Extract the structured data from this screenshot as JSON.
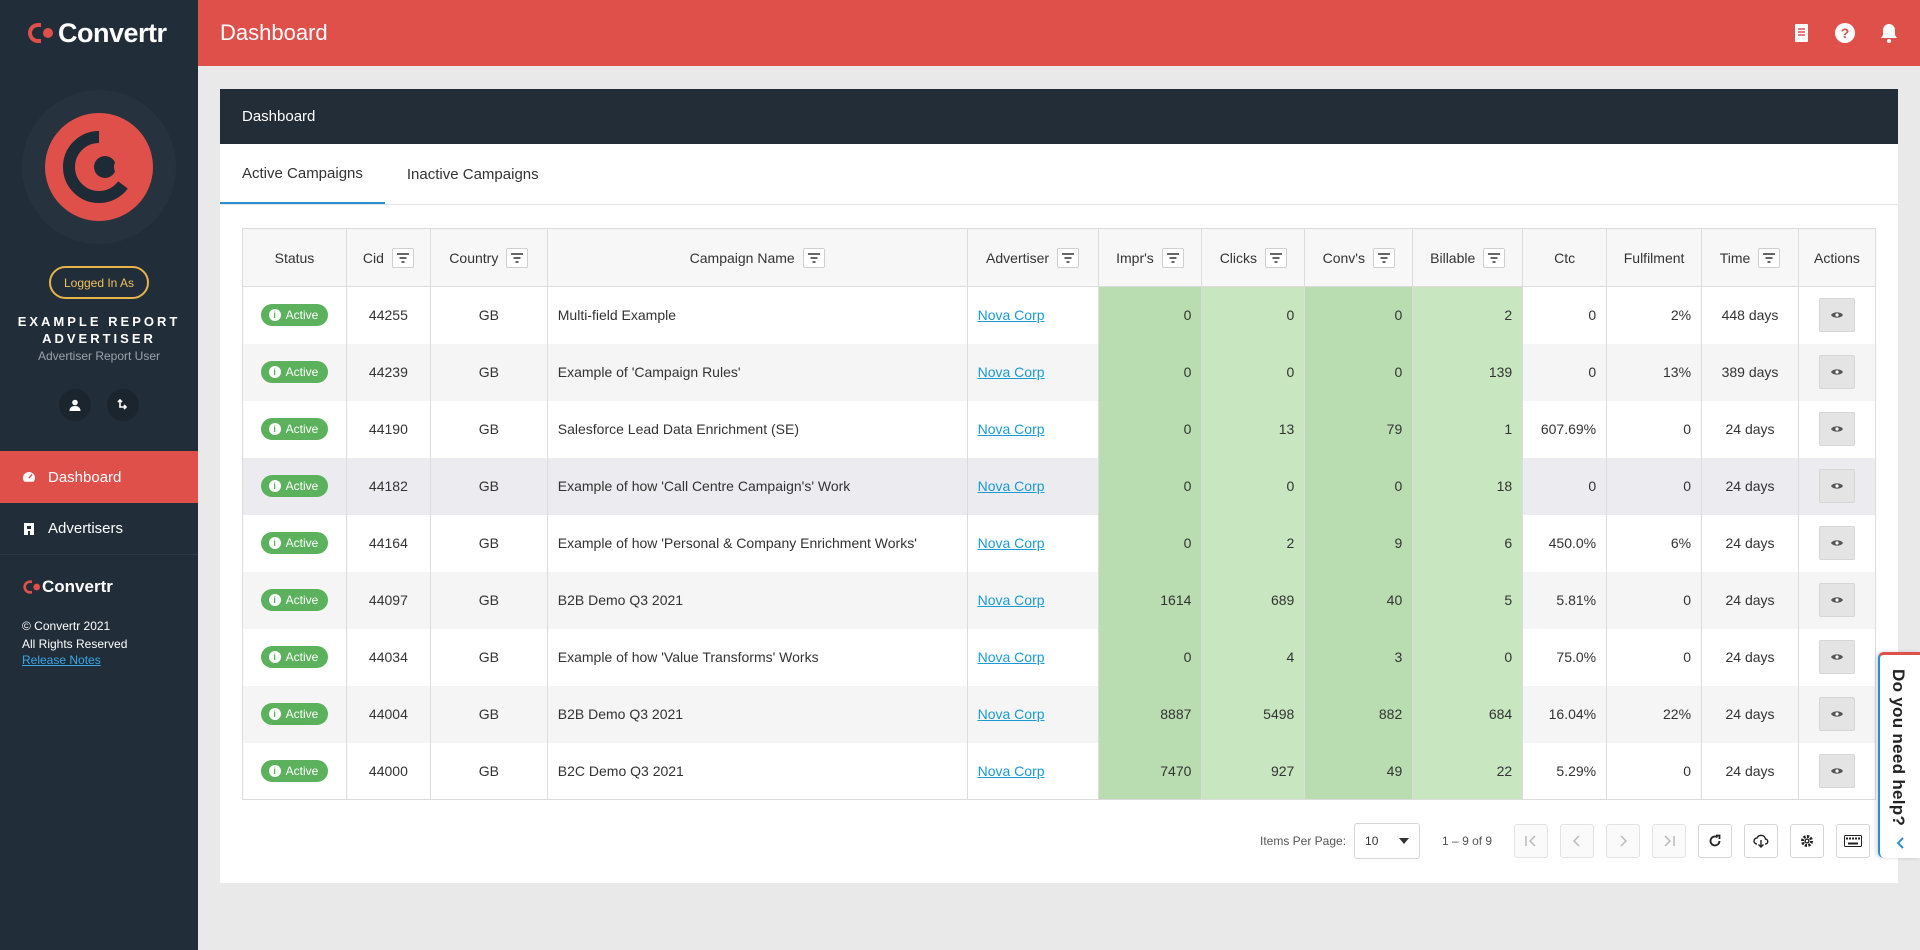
{
  "brand": {
    "name": "Convertr",
    "accent": "#e0504a"
  },
  "sidebar": {
    "logged_in_label": "Logged In As",
    "user_name_line1": "EXAMPLE REPORT",
    "user_name_line2": "ADVERTISER",
    "user_role": "Advertiser Report User",
    "nav": [
      {
        "label": "Dashboard",
        "icon": "dashboard-icon",
        "active": true
      },
      {
        "label": "Advertisers",
        "icon": "advertisers-icon",
        "active": false
      }
    ],
    "footer_logo": "Convertr",
    "copyright": "© Convertr 2021",
    "rights": "All Rights Reserved",
    "release_notes": "Release Notes"
  },
  "topbar": {
    "title": "Dashboard"
  },
  "panel": {
    "title": "Dashboard",
    "tabs": [
      {
        "label": "Active Campaigns"
      },
      {
        "label": "Inactive Campaigns"
      }
    ]
  },
  "table": {
    "headers": {
      "status": "Status",
      "cid": "Cid",
      "country": "Country",
      "campaign": "Campaign Name",
      "advertiser": "Advertiser",
      "imprs": "Impr's",
      "clicks": "Clicks",
      "convs": "Conv's",
      "billable": "Billable",
      "ctc": "Ctc",
      "fulfilment": "Fulfilment",
      "time": "Time",
      "actions": "Actions"
    },
    "rows": [
      {
        "status": "Active",
        "cid": "44255",
        "country": "GB",
        "campaign": "Multi-field Example",
        "advertiser": "Nova Corp",
        "imprs": "0",
        "clicks": "0",
        "convs": "0",
        "billable": "2",
        "ctc": "0",
        "fulfilment": "2%",
        "time": "448 days"
      },
      {
        "status": "Active",
        "cid": "44239",
        "country": "GB",
        "campaign": "Example of 'Campaign Rules'",
        "advertiser": "Nova Corp",
        "imprs": "0",
        "clicks": "0",
        "convs": "0",
        "billable": "139",
        "ctc": "0",
        "fulfilment": "13%",
        "time": "389 days"
      },
      {
        "status": "Active",
        "cid": "44190",
        "country": "GB",
        "campaign": "Salesforce Lead Data Enrichment (SE)",
        "advertiser": "Nova Corp",
        "imprs": "0",
        "clicks": "13",
        "convs": "79",
        "billable": "1",
        "ctc": "607.69%",
        "fulfilment": "0",
        "time": "24 days"
      },
      {
        "status": "Active",
        "cid": "44182",
        "country": "GB",
        "campaign": "Example of how 'Call Centre Campaign's' Work",
        "advertiser": "Nova Corp",
        "imprs": "0",
        "clicks": "0",
        "convs": "0",
        "billable": "18",
        "ctc": "0",
        "fulfilment": "0",
        "time": "24 days"
      },
      {
        "status": "Active",
        "cid": "44164",
        "country": "GB",
        "campaign": "Example of how 'Personal & Company Enrichment Works'",
        "advertiser": "Nova Corp",
        "imprs": "0",
        "clicks": "2",
        "convs": "9",
        "billable": "6",
        "ctc": "450.0%",
        "fulfilment": "6%",
        "time": "24 days"
      },
      {
        "status": "Active",
        "cid": "44097",
        "country": "GB",
        "campaign": "B2B Demo Q3 2021",
        "advertiser": "Nova Corp",
        "imprs": "1614",
        "clicks": "689",
        "convs": "40",
        "billable": "5",
        "ctc": "5.81%",
        "fulfilment": "0",
        "time": "24 days"
      },
      {
        "status": "Active",
        "cid": "44034",
        "country": "GB",
        "campaign": "Example of how 'Value Transforms' Works",
        "advertiser": "Nova Corp",
        "imprs": "0",
        "clicks": "4",
        "convs": "3",
        "billable": "0",
        "ctc": "75.0%",
        "fulfilment": "0",
        "time": "24 days"
      },
      {
        "status": "Active",
        "cid": "44004",
        "country": "GB",
        "campaign": "B2B Demo Q3 2021",
        "advertiser": "Nova Corp",
        "imprs": "8887",
        "clicks": "5498",
        "convs": "882",
        "billable": "684",
        "ctc": "16.04%",
        "fulfilment": "22%",
        "time": "24 days"
      },
      {
        "status": "Active",
        "cid": "44000",
        "country": "GB",
        "campaign": "B2C Demo Q3 2021",
        "advertiser": "Nova Corp",
        "imprs": "7470",
        "clicks": "927",
        "convs": "49",
        "billable": "22",
        "ctc": "5.29%",
        "fulfilment": "0",
        "time": "24 days"
      }
    ]
  },
  "pager": {
    "items_per_page_label": "Items Per Page:",
    "items_per_page_value": "10",
    "range": "1 – 9 of 9"
  },
  "help": {
    "label": "Do you need help?"
  }
}
